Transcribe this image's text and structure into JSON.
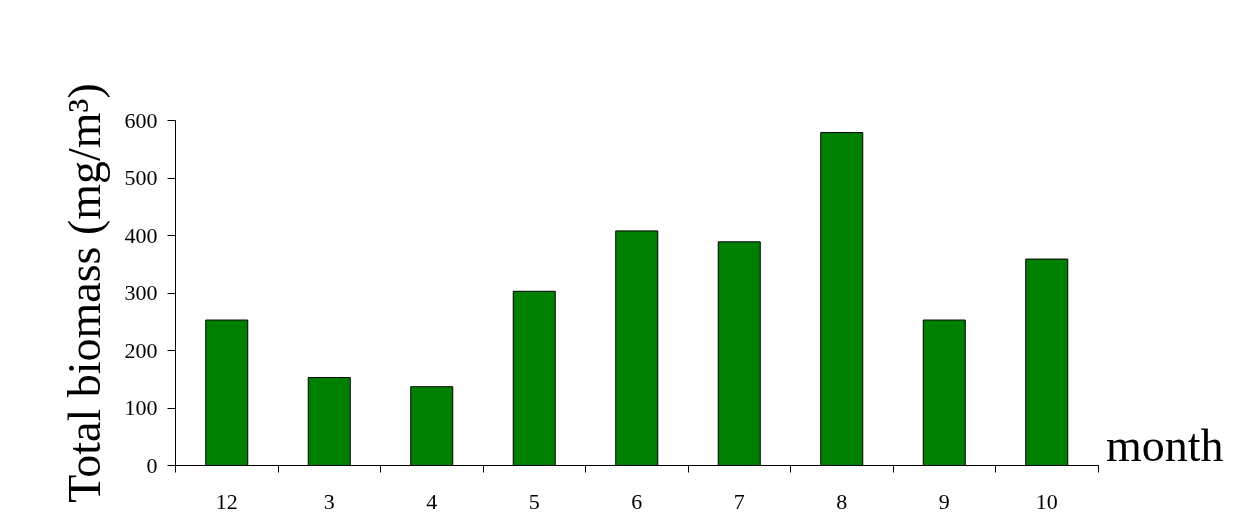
{
  "chart_data": {
    "type": "bar",
    "xlabel": "month",
    "ylabel": "Total biomass (mg/m³)",
    "categories": [
      "12",
      "3",
      "4",
      "5",
      "6",
      "7",
      "8",
      "9",
      "10"
    ],
    "values": [
      253,
      153,
      137,
      303,
      408,
      389,
      579,
      253,
      359
    ],
    "color": "#008000",
    "ylim": [
      0,
      600
    ],
    "yticks": [
      0,
      100,
      200,
      300,
      400,
      500,
      600
    ],
    "grid": false
  }
}
